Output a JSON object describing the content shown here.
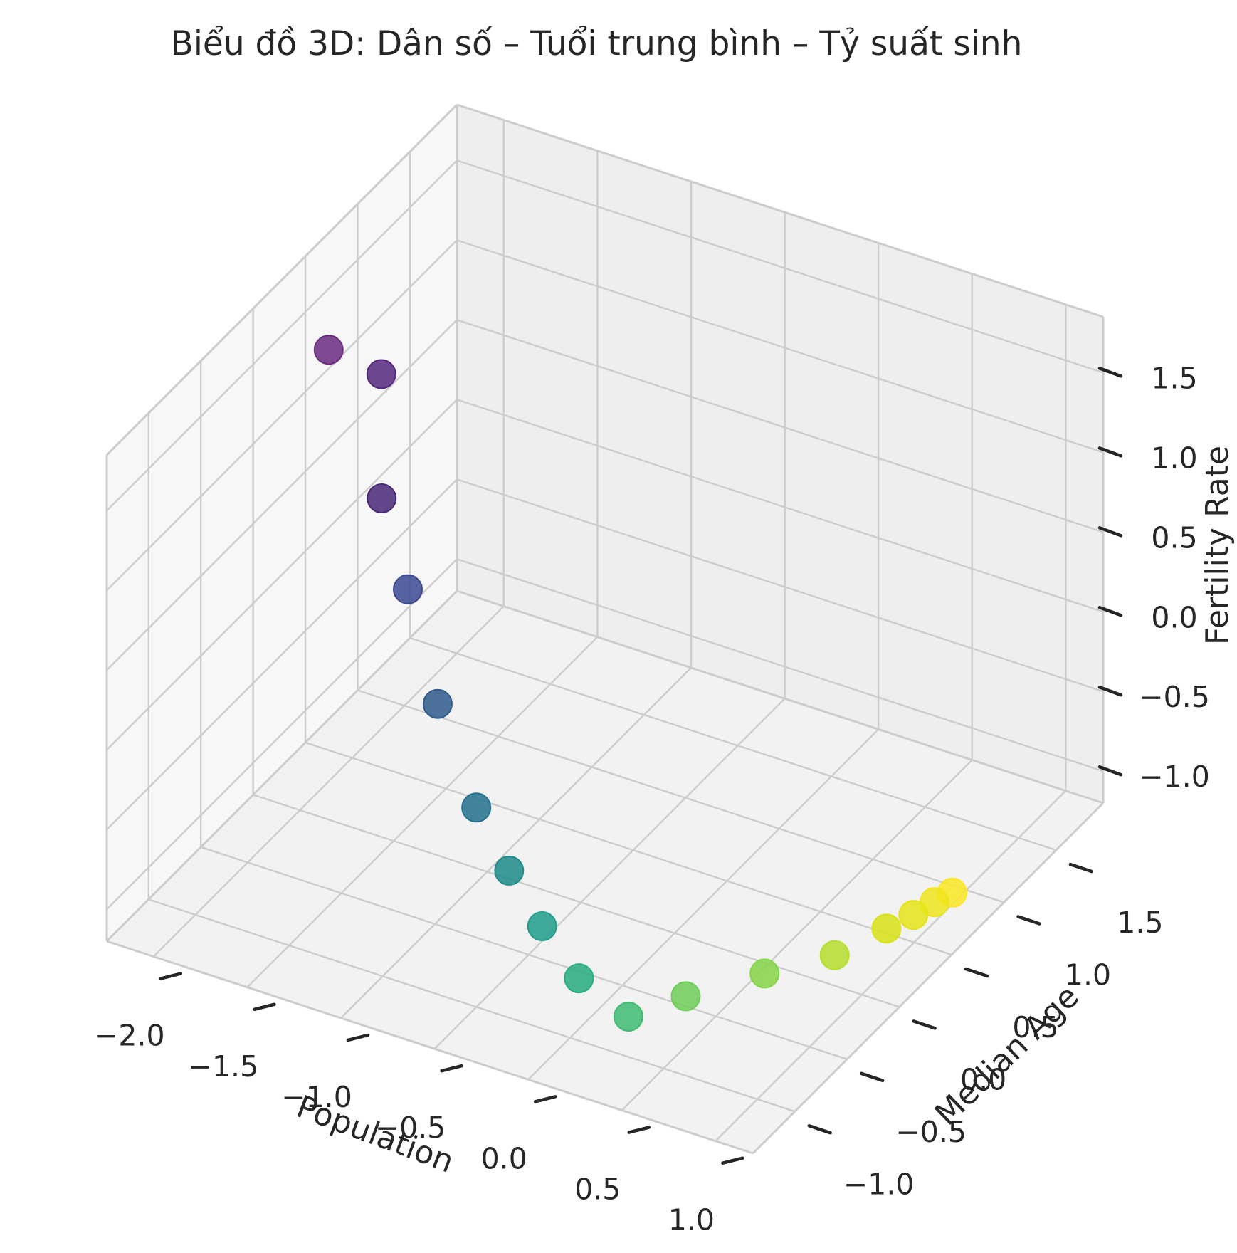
{
  "chart_data": {
    "type": "scatter",
    "title": "Biểu đồ 3D: Dân số – Tuổi trung bình – Tỷ suất sinh",
    "xlabel": "Population",
    "ylabel": "Median Age",
    "zlabel": "Fertility Rate",
    "x_ticks": [
      "−2.0",
      "−1.5",
      "−1.0",
      "−0.5",
      "0.0",
      "0.5",
      "1.0"
    ],
    "y_ticks": [
      "−1.0",
      "−0.5",
      "0.0",
      "0.5",
      "1.0",
      "1.5"
    ],
    "z_ticks": [
      "−1.0",
      "−0.5",
      "0.0",
      "0.5",
      "1.0",
      "1.5"
    ],
    "xlim": [
      -2.25,
      1.2
    ],
    "ylim": [
      -1.4,
      1.95
    ],
    "zlim": [
      -1.2,
      1.85
    ],
    "grid": true,
    "colormap": "viridis",
    "points": [
      {
        "x": -2.12,
        "y": 0.49,
        "z": 1.32,
        "color": "#6a2c7f"
      },
      {
        "x": -1.9,
        "y": 0.6,
        "z": 1.18,
        "color": "#54287c"
      },
      {
        "x": -1.72,
        "y": 0.28,
        "z": 0.68,
        "color": "#482878"
      },
      {
        "x": -1.48,
        "y": 0.1,
        "z": 0.32,
        "color": "#3b4990"
      },
      {
        "x": -1.22,
        "y": -0.08,
        "z": -0.18,
        "color": "#2f5b8c"
      },
      {
        "x": -0.93,
        "y": -0.23,
        "z": -0.62,
        "color": "#25718e"
      },
      {
        "x": -0.66,
        "y": -0.4,
        "z": -0.8,
        "color": "#1f8a8a"
      },
      {
        "x": -0.4,
        "y": -0.55,
        "z": -0.95,
        "color": "#1f9e89"
      },
      {
        "x": -0.12,
        "y": -0.7,
        "z": -1.07,
        "color": "#26ad81"
      },
      {
        "x": 0.15,
        "y": -0.71,
        "z": -1.2,
        "color": "#3fbc73"
      },
      {
        "x": 0.35,
        "y": -0.52,
        "z": -1.12,
        "color": "#6ece58"
      },
      {
        "x": 0.62,
        "y": -0.25,
        "z": -1.05,
        "color": "#86d549"
      },
      {
        "x": 0.86,
        "y": -0.01,
        "z": -1.0,
        "color": "#b5de2b"
      },
      {
        "x": 0.98,
        "y": 0.27,
        "z": -0.97,
        "color": "#d8e219"
      },
      {
        "x": 1.04,
        "y": 0.42,
        "z": -0.96,
        "color": "#e5e419"
      },
      {
        "x": 1.08,
        "y": 0.55,
        "z": -0.95,
        "color": "#f0e51c"
      },
      {
        "x": 1.12,
        "y": 0.65,
        "z": -0.94,
        "color": "#fde725"
      }
    ]
  }
}
